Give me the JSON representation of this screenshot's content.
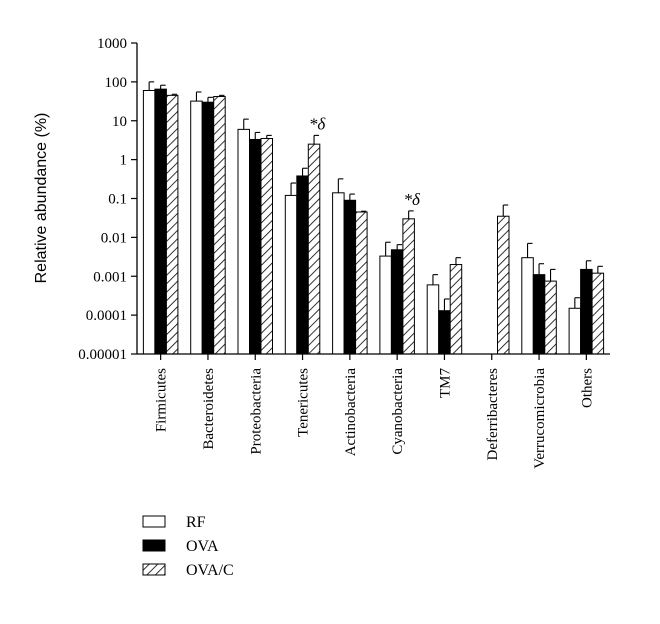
{
  "chart_data": {
    "type": "bar",
    "title": "",
    "xlabel": "",
    "ylabel": "Relative abundance (%)",
    "yscale": "log",
    "ylim": [
      1e-05,
      1000
    ],
    "y_ticks": [
      "0.00001",
      "0.0001",
      "0.001",
      "0.01",
      "0.1",
      "1",
      "10",
      "100",
      "1000"
    ],
    "categories": [
      "Firmicutes",
      "Bacteroidetes",
      "Proteobacteria",
      "Tenericutes",
      "Actinobacteria",
      "Cyanobacteria",
      "TM7",
      "Deferribacteres",
      "Verrucomicrobia",
      "Others"
    ],
    "series": [
      {
        "name": "RF",
        "fill": "#ffffff",
        "values": [
          60,
          32,
          6,
          0.12,
          0.14,
          0.0033,
          0.0006,
          null,
          0.003,
          0.00015
        ],
        "error": [
          100,
          55,
          11,
          0.25,
          0.32,
          0.0075,
          0.0011,
          null,
          0.007,
          0.00028
        ]
      },
      {
        "name": "OVA",
        "fill": "#000000",
        "values": [
          65,
          30,
          3.3,
          0.38,
          0.09,
          0.0048,
          0.00013,
          null,
          0.0011,
          0.0015
        ],
        "error": [
          82,
          40,
          5,
          0.6,
          0.13,
          0.0065,
          0.00026,
          null,
          0.0021,
          0.0025
        ]
      },
      {
        "name": "OVA/C",
        "fill": "hatch",
        "values": [
          45,
          42,
          3.5,
          2.5,
          0.045,
          0.03,
          0.002,
          0.035,
          0.00075,
          0.0012
        ],
        "error": [
          48,
          45,
          4.2,
          4.2,
          0.047,
          0.048,
          0.003,
          0.068,
          0.0015,
          0.0018
        ]
      }
    ],
    "annotations": [
      {
        "category": "Tenericutes",
        "series": "OVA/C",
        "text": "*δ"
      },
      {
        "category": "Cyanobacteria",
        "series": "OVA/C",
        "text": "*δ"
      }
    ],
    "legend_position": "bottom-left",
    "grid": false
  }
}
